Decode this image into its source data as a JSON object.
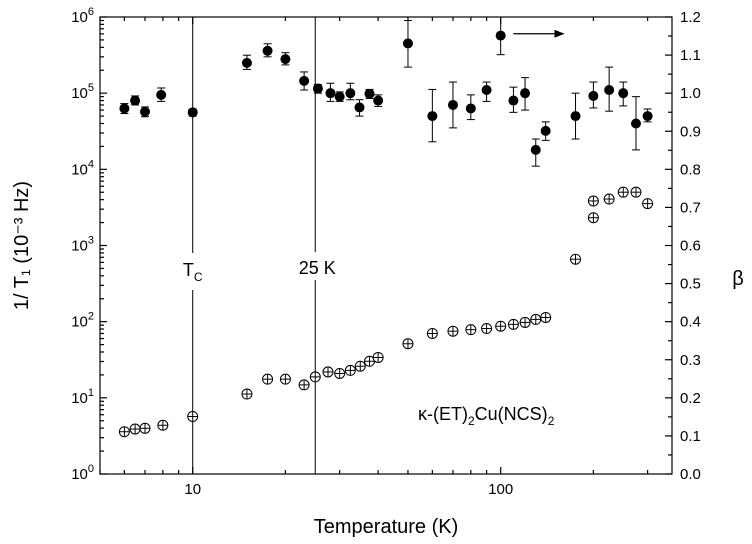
{
  "chart_data": {
    "type": "scatter",
    "x_scale": "log",
    "xlabel": "Temperature (K)",
    "ylabel_left": "1/ T₁ (10⁻³ Hz)",
    "ylabel_right": "β",
    "xlim": [
      5,
      360
    ],
    "ylim_left": [
      1,
      1000000
    ],
    "y_left_scale": "log",
    "ylim_right": [
      0.0,
      1.2
    ],
    "x_ticks": [
      {
        "value": 10,
        "label": "10"
      },
      {
        "value": 100,
        "label": "100"
      }
    ],
    "y_left_ticks": [
      {
        "value": 1,
        "base": "10",
        "exp": "0"
      },
      {
        "value": 10,
        "base": "10",
        "exp": "1"
      },
      {
        "value": 100,
        "base": "10",
        "exp": "2"
      },
      {
        "value": 1000,
        "base": "10",
        "exp": "3"
      },
      {
        "value": 10000,
        "base": "10",
        "exp": "4"
      },
      {
        "value": 100000,
        "base": "10",
        "exp": "5"
      },
      {
        "value": 1000000,
        "base": "10",
        "exp": "6"
      }
    ],
    "y_right_ticks": [
      "0.0",
      "0.1",
      "0.2",
      "0.3",
      "0.4",
      "0.5",
      "0.6",
      "0.7",
      "0.8",
      "0.9",
      "1.0",
      "1.1",
      "1.2"
    ],
    "grid": false,
    "series": [
      {
        "axis": "left",
        "marker": "filled-circle",
        "points": [
          {
            "x": 6.0,
            "y": 63000,
            "lo": 54000,
            "hi": 73000
          },
          {
            "x": 6.5,
            "y": 80000,
            "lo": 70000,
            "hi": 92000
          },
          {
            "x": 7.0,
            "y": 57000,
            "lo": 49000,
            "hi": 66000
          },
          {
            "x": 7.9,
            "y": 95000,
            "lo": 78000,
            "hi": 117000
          },
          {
            "x": 10.0,
            "y": 56000,
            "lo": 50000,
            "hi": 62000
          },
          {
            "x": 15.0,
            "y": 250000,
            "lo": 205000,
            "hi": 315000
          },
          {
            "x": 17.5,
            "y": 360000,
            "lo": 300000,
            "hi": 445000
          },
          {
            "x": 20.0,
            "y": 280000,
            "lo": 235000,
            "hi": 340000
          },
          {
            "x": 23.0,
            "y": 145000,
            "lo": 110000,
            "hi": 190000
          },
          {
            "x": 25.5,
            "y": 115000,
            "lo": 100000,
            "hi": 130000
          },
          {
            "x": 28.0,
            "y": 100000,
            "lo": 78000,
            "hi": 135000
          },
          {
            "x": 30.0,
            "y": 90000,
            "lo": 78000,
            "hi": 104000
          },
          {
            "x": 32.5,
            "y": 100000,
            "lo": 82000,
            "hi": 135000
          },
          {
            "x": 34.8,
            "y": 65000,
            "lo": 50000,
            "hi": 82000
          },
          {
            "x": 37.5,
            "y": 98000,
            "lo": 85000,
            "hi": 112000
          },
          {
            "x": 40.0,
            "y": 80000,
            "lo": 67000,
            "hi": 95000
          },
          {
            "x": 50.0,
            "y": 450000,
            "lo": 220000,
            "hi": 900000
          },
          {
            "x": 60.0,
            "y": 50000,
            "lo": 23000,
            "hi": 112000
          },
          {
            "x": 70.0,
            "y": 70000,
            "lo": 35000,
            "hi": 140000
          },
          {
            "x": 80.0,
            "y": 63000,
            "lo": 45000,
            "hi": 95000
          },
          {
            "x": 90.0,
            "y": 110000,
            "lo": 78000,
            "hi": 140000
          },
          {
            "x": 100.0,
            "y": 570000,
            "lo": 320000,
            "hi": 1000000
          },
          {
            "x": 110.0,
            "y": 80000,
            "lo": 56000,
            "hi": 120000
          },
          {
            "x": 120.0,
            "y": 100000,
            "lo": 60000,
            "hi": 160000
          },
          {
            "x": 130.0,
            "y": 18000,
            "lo": 11000,
            "hi": 25000
          },
          {
            "x": 140.0,
            "y": 32000,
            "lo": 24000,
            "hi": 42000
          },
          {
            "x": 175.0,
            "y": 50000,
            "lo": 25000,
            "hi": 100000
          },
          {
            "x": 200.0,
            "y": 92000,
            "lo": 64000,
            "hi": 140000
          },
          {
            "x": 225.0,
            "y": 110000,
            "lo": 58000,
            "hi": 220000
          },
          {
            "x": 250.0,
            "y": 100000,
            "lo": 68000,
            "hi": 140000
          },
          {
            "x": 275.0,
            "y": 40000,
            "lo": 18000,
            "hi": 90000
          },
          {
            "x": 300.0,
            "y": 50000,
            "lo": 42000,
            "hi": 62000
          }
        ]
      },
      {
        "axis": "right",
        "marker": "crossed-circle",
        "points": [
          {
            "x": 6.0,
            "y": 0.111
          },
          {
            "x": 6.5,
            "y": 0.118
          },
          {
            "x": 7.0,
            "y": 0.12
          },
          {
            "x": 8.0,
            "y": 0.128
          },
          {
            "x": 10.0,
            "y": 0.151
          },
          {
            "x": 15.0,
            "y": 0.21
          },
          {
            "x": 17.5,
            "y": 0.249
          },
          {
            "x": 20.0,
            "y": 0.249
          },
          {
            "x": 23.0,
            "y": 0.234
          },
          {
            "x": 25.0,
            "y": 0.255
          },
          {
            "x": 27.5,
            "y": 0.268
          },
          {
            "x": 30.0,
            "y": 0.264
          },
          {
            "x": 32.5,
            "y": 0.272
          },
          {
            "x": 35.0,
            "y": 0.283
          },
          {
            "x": 37.5,
            "y": 0.296
          },
          {
            "x": 40.0,
            "y": 0.306
          },
          {
            "x": 50.0,
            "y": 0.342
          },
          {
            "x": 60.0,
            "y": 0.369
          },
          {
            "x": 70.0,
            "y": 0.375
          },
          {
            "x": 80.0,
            "y": 0.379
          },
          {
            "x": 90.0,
            "y": 0.382
          },
          {
            "x": 100.0,
            "y": 0.388
          },
          {
            "x": 110.0,
            "y": 0.393
          },
          {
            "x": 120.0,
            "y": 0.398
          },
          {
            "x": 130.0,
            "y": 0.406
          },
          {
            "x": 140.0,
            "y": 0.411
          },
          {
            "x": 175.0,
            "y": 0.564
          },
          {
            "x": 200.0,
            "y": 0.673
          },
          {
            "x": 200.0,
            "y": 0.717
          },
          {
            "x": 225.0,
            "y": 0.722
          },
          {
            "x": 250.0,
            "y": 0.74
          },
          {
            "x": 275.0,
            "y": 0.74
          },
          {
            "x": 300.0,
            "y": 0.71
          }
        ]
      }
    ],
    "vertical_lines": [
      {
        "x": 10,
        "label_base": "T",
        "label_sub": "C"
      },
      {
        "x": 25,
        "label": "25 K"
      }
    ],
    "arrow": {
      "x_from": 110,
      "x_to": 160,
      "y_right": 1.156,
      "direction": "right"
    },
    "annotation": {
      "prefix": "κ-(ET)",
      "sub1": "2",
      "mid": "Cu(NCS)",
      "sub2": "2"
    }
  }
}
